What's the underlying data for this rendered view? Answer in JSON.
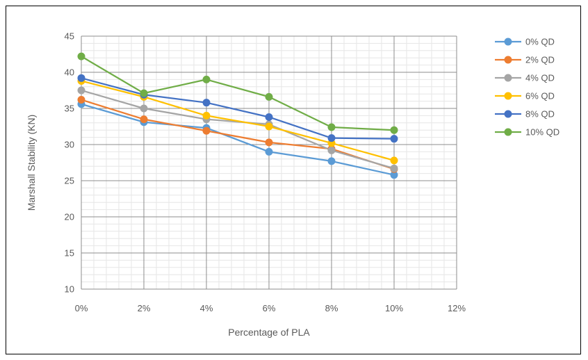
{
  "chart_data": {
    "type": "line",
    "title": "",
    "xlabel": "Percentage of PLA",
    "ylabel": "Marshall Stability (KN)",
    "x_ticks": [
      "0%",
      "2%",
      "4%",
      "6%",
      "8%",
      "10%",
      "12%"
    ],
    "x_values": [
      0,
      2,
      4,
      6,
      8,
      10,
      12
    ],
    "xlim": [
      0,
      12
    ],
    "ylim": [
      10,
      45
    ],
    "y_ticks": [
      10,
      15,
      20,
      25,
      30,
      35,
      40,
      45
    ],
    "grid": "major and minor",
    "legend_position": "right",
    "series": [
      {
        "name": "0% QD",
        "color": "#5B9BD5",
        "x": [
          0,
          2,
          4,
          6,
          8,
          10
        ],
        "values": [
          35.6,
          33.1,
          32.3,
          29.0,
          27.7,
          25.8
        ]
      },
      {
        "name": "2% QD",
        "color": "#ED7D31",
        "x": [
          0,
          2,
          4,
          6,
          8,
          10
        ],
        "values": [
          36.2,
          33.5,
          31.9,
          30.3,
          29.4,
          26.6
        ]
      },
      {
        "name": "4% QD",
        "color": "#A5A5A5",
        "x": [
          0,
          2,
          4,
          6,
          8,
          10
        ],
        "values": [
          37.5,
          35.0,
          33.5,
          32.8,
          29.2,
          26.7
        ]
      },
      {
        "name": "6% QD",
        "color": "#FFC000",
        "x": [
          0,
          2,
          4,
          6,
          8,
          10
        ],
        "values": [
          38.8,
          36.6,
          34.0,
          32.5,
          30.2,
          27.8
        ]
      },
      {
        "name": "8% QD",
        "color": "#4472C4",
        "x": [
          0,
          2,
          4,
          6,
          8,
          10
        ],
        "values": [
          39.2,
          36.9,
          35.8,
          33.8,
          30.9,
          30.8
        ]
      },
      {
        "name": "10% QD",
        "color": "#70AD47",
        "x": [
          0,
          2,
          4,
          6,
          8,
          10
        ],
        "values": [
          42.2,
          37.1,
          39.0,
          36.6,
          32.4,
          32.0
        ]
      }
    ]
  }
}
